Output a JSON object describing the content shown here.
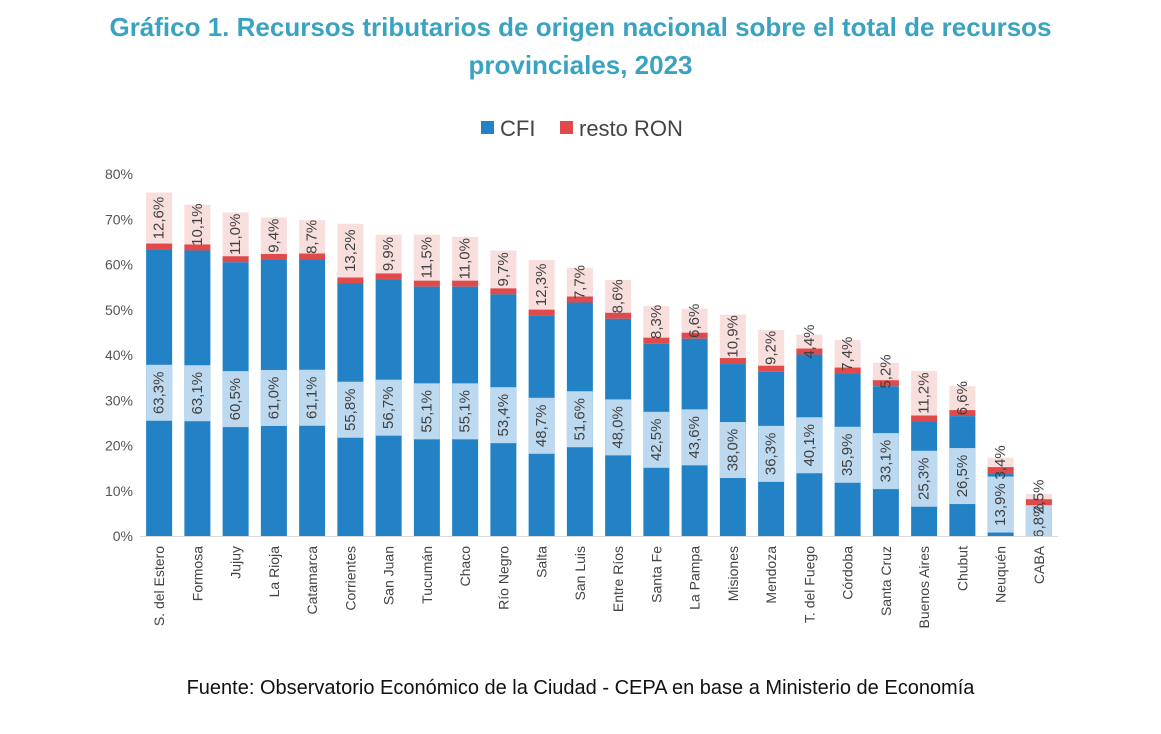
{
  "title": {
    "line1": "Gráfico 1. Recursos tributarios de origen nacional sobre el total de recursos",
    "line2": "provinciales, 2023"
  },
  "source": "Fuente: Observatorio Económico de la Ciudad - CEPA en base a Ministerio de Economía",
  "colors": {
    "cfi": "#2382c6",
    "cfi_label_band": "#bdd9ef",
    "resto_ron": "#e04a4a",
    "resto_label_band": "#f9dede",
    "title": "#3aa3c2"
  },
  "chart_data": {
    "type": "bar",
    "stacked": true,
    "ylim": [
      0,
      80
    ],
    "yticks": [
      0,
      10,
      20,
      30,
      40,
      50,
      60,
      70,
      80
    ],
    "ytick_labels": [
      "0%",
      "10%",
      "20%",
      "30%",
      "40%",
      "50%",
      "60%",
      "70%",
      "80%"
    ],
    "legend_position": "top-center",
    "categories": [
      "S. del Estero",
      "Formosa",
      "Jujuy",
      "La Rioja",
      "Catamarca",
      "Corrientes",
      "San Juan",
      "Tucumán",
      "Chaco",
      "Río Negro",
      "Salta",
      "San Luis",
      "Entre Ríos",
      "Santa Fe",
      "La Pampa",
      "Misiones",
      "Mendoza",
      "T. del Fuego",
      "Córdoba",
      "Santa Cruz",
      "Buenos Aires",
      "Chubut",
      "Neuquén",
      "CABA"
    ],
    "series": [
      {
        "name": "CFI",
        "values": [
          63.3,
          63.1,
          60.5,
          61.0,
          61.1,
          55.8,
          56.7,
          55.1,
          55.1,
          53.4,
          48.7,
          51.6,
          48.0,
          42.5,
          43.6,
          38.0,
          36.3,
          40.1,
          35.9,
          33.1,
          25.3,
          26.5,
          13.9,
          6.8
        ],
        "labels": [
          "63,3%",
          "63,1%",
          "60,5%",
          "61,0%",
          "61,1%",
          "55,8%",
          "56,7%",
          "55,1%",
          "55,1%",
          "53,4%",
          "48,7%",
          "51,6%",
          "48,0%",
          "42,5%",
          "43,6%",
          "38,0%",
          "36,3%",
          "40,1%",
          "35,9%",
          "33,1%",
          "25,3%",
          "26,5%",
          "13,9%",
          "6,8%"
        ]
      },
      {
        "name": "resto RON",
        "values": [
          12.6,
          10.1,
          11.0,
          9.4,
          8.7,
          13.2,
          9.9,
          11.5,
          11.0,
          9.7,
          12.3,
          7.7,
          8.6,
          8.3,
          6.6,
          10.9,
          9.2,
          4.4,
          7.4,
          5.2,
          11.2,
          6.6,
          3.4,
          2.5
        ],
        "labels": [
          "12,6%",
          "10,1%",
          "11,0%",
          "9,4%",
          "8,7%",
          "13,2%",
          "9,9%",
          "11,5%",
          "11,0%",
          "9,7%",
          "12,3%",
          "7,7%",
          "8,6%",
          "8,3%",
          "6,6%",
          "10,9%",
          "9,2%",
          "4,4%",
          "7,4%",
          "5,2%",
          "11,2%",
          "6,6%",
          "3,4%",
          "2,5%"
        ]
      }
    ]
  }
}
